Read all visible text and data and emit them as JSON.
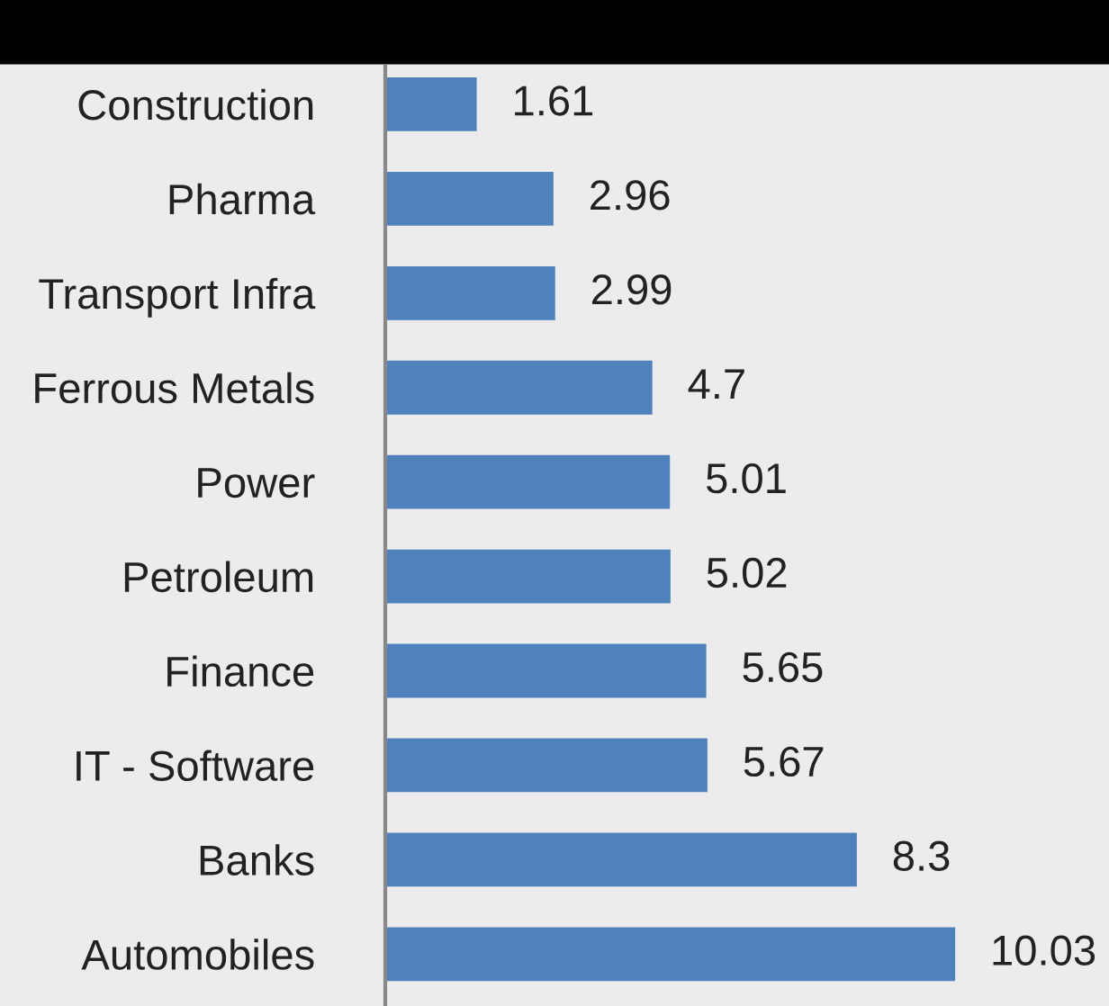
{
  "chart_data": {
    "type": "bar",
    "orientation": "horizontal",
    "data_labels": true,
    "grid": false,
    "legend": false,
    "categories": [
      "Construction",
      "Pharma",
      "Transport Infra",
      "Ferrous Metals",
      "Power",
      "Petroleum",
      "Finance",
      "IT - Software",
      "Banks",
      "Automobiles"
    ],
    "values": [
      1.61,
      2.96,
      2.99,
      4.7,
      5.01,
      5.02,
      5.65,
      5.67,
      8.3,
      10.03
    ],
    "color": "#4f81bd"
  }
}
